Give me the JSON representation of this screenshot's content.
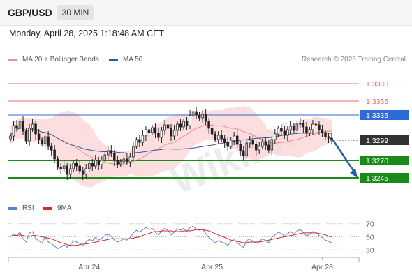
{
  "header": {
    "symbol": "GBP/USD",
    "timeframe": "30 MIN",
    "datetime": "Monday, April 28, 2025 1:18:48 AM CET"
  },
  "legend": {
    "bollinger": {
      "label": "MA 20 + Bollinger Bands",
      "color": "#f28b8b"
    },
    "ma50": {
      "label": "MA 50",
      "color": "#2e5a9b"
    }
  },
  "credit": "Research © 2025 Trading Central",
  "rsi_legend": {
    "rsi": {
      "label": "RSI",
      "color": "#5b7fd6"
    },
    "ma9": {
      "label": "9MA",
      "color": "#d22b2b"
    }
  },
  "watermark": "WikiFX",
  "colors": {
    "resistance": "#e06c6c",
    "pivot": "#2e6bd6",
    "support": "#1a8a1a",
    "current": "#333333",
    "bull": "#ffffff",
    "bear": "#222222",
    "arrow": "#2a5aa8"
  },
  "chart_data": [
    {
      "type": "candlestick",
      "title": "GBP/USD",
      "ylim": [
        1.322,
        1.34
      ],
      "x_ticks": [
        "Apr 24",
        "Apr 25",
        "Apr 28"
      ],
      "levels": [
        {
          "value": 1.338,
          "label": "1.3380",
          "kind": "resistance"
        },
        {
          "value": 1.3355,
          "label": "1.3355",
          "kind": "resistance"
        },
        {
          "value": 1.3335,
          "label": "1.3335",
          "kind": "pivot"
        },
        {
          "value": 1.3299,
          "label": "1.3299",
          "kind": "current"
        },
        {
          "value": 1.327,
          "label": "1.3270",
          "kind": "support"
        },
        {
          "value": 1.3245,
          "label": "1.3245",
          "kind": "support"
        }
      ],
      "close": [
        1.3305,
        1.332,
        1.3316,
        1.3326,
        1.3312,
        1.3298,
        1.3316,
        1.3322,
        1.3308,
        1.33,
        1.3294,
        1.3304,
        1.329,
        1.3285,
        1.3272,
        1.326,
        1.3258,
        1.3262,
        1.325,
        1.3258,
        1.3266,
        1.3262,
        1.3255,
        1.325,
        1.3258,
        1.3266,
        1.3262,
        1.327,
        1.3264,
        1.327,
        1.3278,
        1.3284,
        1.328,
        1.327,
        1.3265,
        1.3268,
        1.3272,
        1.3268,
        1.3275,
        1.329,
        1.33,
        1.3296,
        1.3306,
        1.3314,
        1.331,
        1.3317,
        1.3309,
        1.3303,
        1.3313,
        1.3321,
        1.3316,
        1.3305,
        1.3313,
        1.3322,
        1.3318,
        1.3326,
        1.332,
        1.3334,
        1.334,
        1.3335,
        1.3331,
        1.3336,
        1.3326,
        1.3316,
        1.3308,
        1.33,
        1.3306,
        1.3301,
        1.3296,
        1.329,
        1.3299,
        1.3305,
        1.3293,
        1.3284,
        1.3277,
        1.3295,
        1.3299,
        1.3293,
        1.3285,
        1.329,
        1.3297,
        1.3292,
        1.3285,
        1.33,
        1.3308,
        1.3316,
        1.3312,
        1.3306,
        1.3314,
        1.3319,
        1.3313,
        1.3322,
        1.3323,
        1.3318,
        1.3309,
        1.3314,
        1.3322,
        1.3321,
        1.3314,
        1.331,
        1.3304,
        1.3302,
        1.3299
      ]
    },
    {
      "type": "line",
      "title": "RSI",
      "ylim": [
        25,
        75
      ],
      "y_ticks": [
        70,
        50,
        30
      ],
      "series": [
        {
          "name": "RSI",
          "values": [
            50,
            54,
            52,
            57,
            47,
            42,
            56,
            58,
            47,
            44,
            40,
            50,
            42,
            40,
            36,
            32,
            34,
            38,
            34,
            38,
            44,
            42,
            40,
            36,
            42,
            46,
            44,
            49,
            45,
            48,
            52,
            54,
            51,
            45,
            42,
            44,
            47,
            45,
            49,
            56,
            60,
            57,
            61,
            64,
            61,
            63,
            57,
            53,
            59,
            63,
            60,
            53,
            57,
            62,
            60,
            63,
            58,
            64,
            66,
            62,
            60,
            62,
            55,
            49,
            45,
            41,
            44,
            42,
            40,
            37,
            43,
            47,
            41,
            37,
            34,
            44,
            47,
            43,
            40,
            43,
            47,
            44,
            41,
            49,
            53,
            57,
            55,
            51,
            55,
            58,
            54,
            59,
            61,
            57,
            51,
            54,
            58,
            57,
            52,
            49,
            45,
            43,
            41
          ]
        },
        {
          "name": "9MA",
          "values": [
            51,
            52,
            52,
            53,
            52,
            51,
            51,
            52,
            52,
            51,
            50,
            49,
            48,
            47,
            45,
            43,
            41,
            40,
            38,
            37,
            37,
            37,
            38,
            39,
            39,
            40,
            41,
            42,
            43,
            44,
            45,
            46,
            47,
            47,
            47,
            47,
            47,
            47,
            47,
            48,
            49,
            50,
            52,
            54,
            55,
            57,
            58,
            58,
            59,
            59,
            59,
            59,
            58,
            58,
            58,
            59,
            59,
            59,
            60,
            61,
            61,
            61,
            60,
            59,
            57,
            55,
            53,
            51,
            49,
            47,
            45,
            44,
            43,
            42,
            41,
            41,
            42,
            42,
            42,
            42,
            43,
            44,
            45,
            46,
            47,
            48,
            49,
            50,
            51,
            52,
            53,
            54,
            55,
            56,
            56,
            56,
            56,
            56,
            55,
            54,
            53,
            51,
            50
          ]
        }
      ]
    }
  ]
}
